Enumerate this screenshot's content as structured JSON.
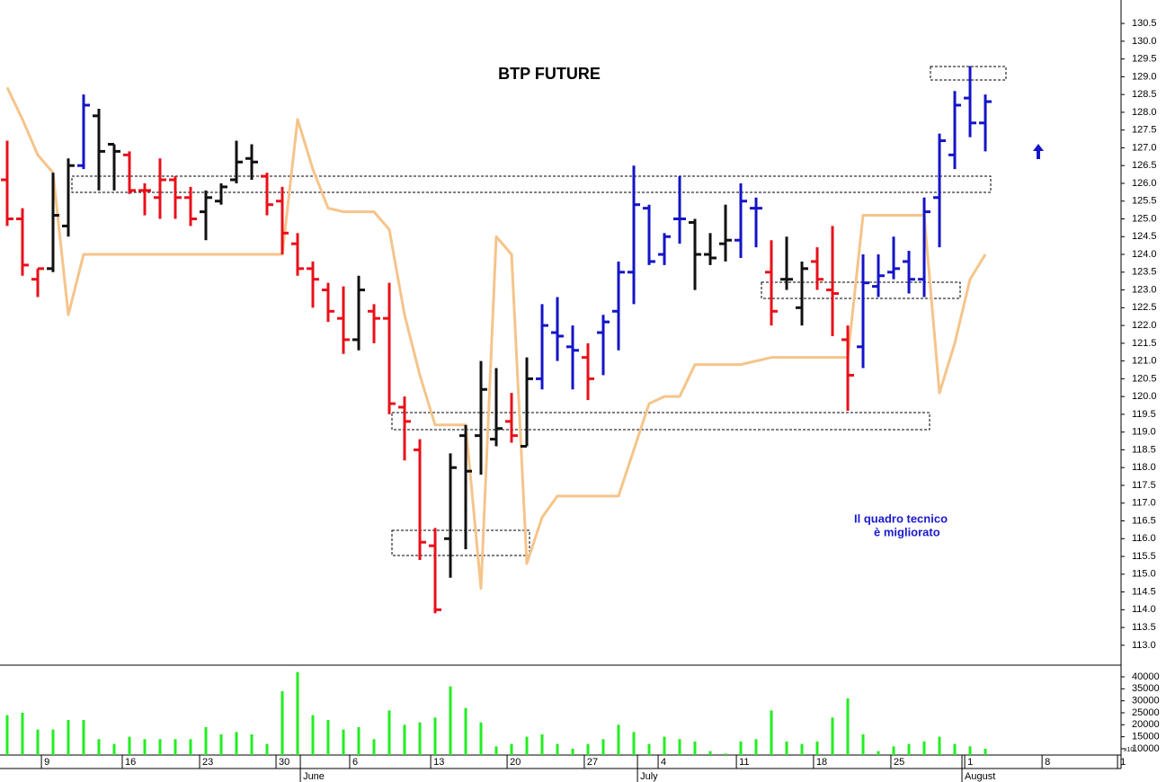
{
  "chart_data": [
    {
      "type": "ohlc",
      "title": "BTP FUTURE",
      "annotation": [
        "Il quadro tecnico",
        "è migliorato"
      ],
      "x": [
        0,
        1,
        2,
        3,
        4,
        5,
        6,
        7,
        8,
        9,
        10,
        11,
        12,
        13,
        14,
        15,
        16,
        17,
        18,
        19,
        20,
        21,
        22,
        23,
        24,
        25,
        26,
        27,
        28,
        29,
        30,
        31,
        32,
        33,
        34,
        35,
        36,
        37,
        38,
        39,
        40,
        41,
        42,
        43,
        44,
        45,
        46,
        47,
        48,
        49,
        50,
        51,
        52,
        53,
        54,
        55,
        56,
        57,
        58,
        59,
        60,
        61,
        62,
        63,
        64
      ],
      "open": [
        126.1,
        125.0,
        123.3,
        123.6,
        124.8,
        126.5,
        127.9,
        127.1,
        126.8,
        125.8,
        125.6,
        126.1,
        125.6,
        125.2,
        125.5,
        126.1,
        126.7,
        126.2,
        125.5,
        124.3,
        123.6,
        123.0,
        122.2,
        121.6,
        122.4,
        122.2,
        119.7,
        118.5,
        115.8,
        116.0,
        118.9,
        118.9,
        118.8,
        119.3,
        118.6,
        120.5,
        121.8,
        121.4,
        121.1,
        121.8,
        122.4,
        123.5,
        125.3,
        124.0,
        125.0,
        124.9,
        124.0,
        124.3,
        124.4,
        125.3,
        123.5,
        123.3,
        122.5,
        123.8,
        123.0,
        121.6,
        121.4,
        123.1,
        123.5,
        123.8,
        123.3,
        125.6,
        126.8,
        128.4,
        127.7
      ],
      "high": [
        127.2,
        125.3,
        123.6,
        126.3,
        126.7,
        128.5,
        128.1,
        127.1,
        126.9,
        126.0,
        126.7,
        126.2,
        125.9,
        125.8,
        126.0,
        127.2,
        127.1,
        126.3,
        125.9,
        124.6,
        123.8,
        123.2,
        123.1,
        123.4,
        122.6,
        123.2,
        120.0,
        118.8,
        116.3,
        118.4,
        119.2,
        121.0,
        120.8,
        120.1,
        121.1,
        122.6,
        122.8,
        122.0,
        121.5,
        122.3,
        123.8,
        126.5,
        125.4,
        124.6,
        126.2,
        125.0,
        124.6,
        125.4,
        126.0,
        125.6,
        124.4,
        124.5,
        123.8,
        124.2,
        124.8,
        122.0,
        124.0,
        124.0,
        124.5,
        124.1,
        125.6,
        127.4,
        128.6,
        129.3,
        128.5
      ],
      "low": [
        124.8,
        123.4,
        122.8,
        123.5,
        124.5,
        126.4,
        125.8,
        125.8,
        125.7,
        125.1,
        125.0,
        125.0,
        124.8,
        124.4,
        125.4,
        126.0,
        126.1,
        125.1,
        124.0,
        123.4,
        122.5,
        122.1,
        121.2,
        121.3,
        121.5,
        119.5,
        118.2,
        115.4,
        113.9,
        114.9,
        115.7,
        117.8,
        118.6,
        118.7,
        118.6,
        120.2,
        121.0,
        120.2,
        119.9,
        120.6,
        121.3,
        122.6,
        123.7,
        123.7,
        124.3,
        123.0,
        123.7,
        123.8,
        123.9,
        124.2,
        122.0,
        123.0,
        122.0,
        123.0,
        121.7,
        119.6,
        120.8,
        122.8,
        123.3,
        122.9,
        122.8,
        124.2,
        126.4,
        127.3,
        126.9
      ],
      "close": [
        125.0,
        123.7,
        123.6,
        125.1,
        126.5,
        128.2,
        126.9,
        126.9,
        125.8,
        125.8,
        126.1,
        125.6,
        125.0,
        125.6,
        125.9,
        126.6,
        126.6,
        125.4,
        124.6,
        123.6,
        123.3,
        122.4,
        121.6,
        123.0,
        122.2,
        119.8,
        119.3,
        115.9,
        114.0,
        118.0,
        117.9,
        120.2,
        119.1,
        118.9,
        120.5,
        122.0,
        121.7,
        121.3,
        120.5,
        122.1,
        123.5,
        125.4,
        123.8,
        124.5,
        125.0,
        124.0,
        123.9,
        124.4,
        125.5,
        125.3,
        122.4,
        123.3,
        123.6,
        123.3,
        122.9,
        120.6,
        123.2,
        123.4,
        123.6,
        123.3,
        125.2,
        127.2,
        128.2,
        127.7,
        128.3
      ],
      "bar_colors": [
        "#e8101a",
        "#e8101a",
        "#e8101a",
        "#111111",
        "#111111",
        "#1414c8",
        "#111111",
        "#111111",
        "#e8101a",
        "#e8101a",
        "#e8101a",
        "#e8101a",
        "#e8101a",
        "#111111",
        "#111111",
        "#111111",
        "#111111",
        "#e8101a",
        "#e8101a",
        "#e8101a",
        "#e8101a",
        "#e8101a",
        "#e8101a",
        "#111111",
        "#e8101a",
        "#e8101a",
        "#e8101a",
        "#e8101a",
        "#e8101a",
        "#111111",
        "#111111",
        "#111111",
        "#111111",
        "#e8101a",
        "#111111",
        "#1414c8",
        "#1414c8",
        "#1414c8",
        "#e8101a",
        "#1414c8",
        "#1414c8",
        "#1414c8",
        "#1414c8",
        "#1414c8",
        "#1414c8",
        "#111111",
        "#111111",
        "#111111",
        "#1414c8",
        "#1414c8",
        "#e8101a",
        "#111111",
        "#111111",
        "#e8101a",
        "#e8101a",
        "#e8101a",
        "#1414c8",
        "#1414c8",
        "#1414c8",
        "#1414c8",
        "#1414c8",
        "#1414c8",
        "#1414c8",
        "#1414c8",
        "#1414c8"
      ],
      "line": {
        "color": "#f5c48a",
        "values": [
          128.7,
          127.8,
          126.8,
          126.3,
          122.3,
          124.0,
          124.0,
          124.0,
          124.0,
          124.0,
          124.0,
          124.0,
          124.0,
          124.0,
          124.0,
          124.0,
          124.0,
          124.0,
          124.0,
          127.8,
          126.4,
          125.3,
          125.2,
          125.2,
          125.2,
          124.7,
          122.3,
          120.6,
          119.2,
          119.2,
          119.2,
          114.6,
          124.5,
          124.0,
          115.3,
          116.6,
          117.2,
          117.2,
          117.2,
          117.2,
          117.2,
          118.5,
          119.8,
          120.0,
          120.0,
          120.9,
          120.9,
          120.9,
          120.9,
          121.0,
          121.1,
          121.1,
          121.1,
          121.1,
          121.1,
          121.1,
          125.1,
          125.1,
          125.1,
          125.1,
          125.1,
          120.1,
          121.5,
          123.3,
          124.0
        ]
      },
      "xlim": [
        -0.47,
        72.88
      ],
      "ylim": [
        112.44,
        131.16
      ],
      "yticks": [
        {
          "value": 113.0,
          "label": "113.0"
        },
        {
          "value": 113.5,
          "label": "113.5"
        },
        {
          "value": 114.0,
          "label": "114.0"
        },
        {
          "value": 114.5,
          "label": "114.5"
        },
        {
          "value": 115.0,
          "label": "115.0"
        },
        {
          "value": 115.5,
          "label": "115.5"
        },
        {
          "value": 116.0,
          "label": "116.0"
        },
        {
          "value": 116.5,
          "label": "116.5"
        },
        {
          "value": 117.0,
          "label": "117.0"
        },
        {
          "value": 117.5,
          "label": "117.5"
        },
        {
          "value": 118.0,
          "label": "118.0"
        },
        {
          "value": 118.5,
          "label": "118.5"
        },
        {
          "value": 119.0,
          "label": "119.0"
        },
        {
          "value": 119.5,
          "label": "119.5"
        },
        {
          "value": 120.0,
          "label": "120.0"
        },
        {
          "value": 120.5,
          "label": "120.5"
        },
        {
          "value": 121.0,
          "label": "121.0"
        },
        {
          "value": 121.5,
          "label": "121.5"
        },
        {
          "value": 122.0,
          "label": "122.0"
        },
        {
          "value": 122.5,
          "label": "122.5"
        },
        {
          "value": 123.0,
          "label": "123.0"
        },
        {
          "value": 123.5,
          "label": "123.5"
        },
        {
          "value": 124.0,
          "label": "124.0"
        },
        {
          "value": 124.5,
          "label": "124.5"
        },
        {
          "value": 125.0,
          "label": "125.0"
        },
        {
          "value": 125.5,
          "label": "125.5"
        },
        {
          "value": 126.0,
          "label": "126.0"
        },
        {
          "value": 126.5,
          "label": "126.5"
        },
        {
          "value": 127.0,
          "label": "127.0"
        },
        {
          "value": 127.5,
          "label": "127.5"
        },
        {
          "value": 128.0,
          "label": "128.0"
        },
        {
          "value": 128.5,
          "label": "128.5"
        },
        {
          "value": 129.0,
          "label": "129.0"
        },
        {
          "value": 129.5,
          "label": "129.5"
        },
        {
          "value": 130.0,
          "label": "130.0"
        },
        {
          "value": 130.5,
          "label": "130.5"
        }
      ]
    },
    {
      "type": "bar",
      "x": [
        0,
        1,
        2,
        3,
        4,
        5,
        6,
        7,
        8,
        9,
        10,
        11,
        12,
        13,
        14,
        15,
        16,
        17,
        18,
        19,
        20,
        21,
        22,
        23,
        24,
        25,
        26,
        27,
        28,
        29,
        30,
        31,
        32,
        33,
        34,
        35,
        36,
        37,
        38,
        39,
        40,
        41,
        42,
        43,
        44,
        45,
        46,
        47,
        48,
        49,
        50,
        51,
        52,
        53,
        54,
        55,
        56,
        57,
        58,
        59,
        60,
        61,
        62,
        63,
        64
      ],
      "values": [
        24000,
        25000,
        18000,
        18000,
        22000,
        22000,
        14000,
        12000,
        15000,
        14000,
        14000,
        14000,
        14000,
        19000,
        16000,
        17000,
        16000,
        12000,
        34000,
        42000,
        24000,
        22000,
        18000,
        19000,
        14000,
        26000,
        20000,
        21000,
        23000,
        36000,
        27000,
        21000,
        11000,
        12000,
        15000,
        16000,
        12000,
        10000,
        12000,
        14000,
        20000,
        17000,
        12000,
        15000,
        14000,
        13000,
        9000,
        8000,
        13000,
        14000,
        26000,
        13000,
        12000,
        13000,
        23000,
        31000,
        16000,
        9000,
        11000,
        12000,
        13000,
        15000,
        12000,
        11000,
        10000
      ],
      "color": "#22ee22",
      "axis_note": "x10",
      "xlim": [
        -0.47,
        72.88
      ],
      "ylim": [
        7375,
        44875
      ],
      "yticks": [
        10000,
        15000,
        20000,
        25000,
        30000,
        35000,
        40000
      ],
      "xticks": [
        {
          "value": 2.24,
          "label": "9"
        },
        {
          "value": 7.53,
          "label": "16"
        },
        {
          "value": 12.59,
          "label": "23"
        },
        {
          "value": 17.59,
          "label": "30"
        },
        {
          "value": 22.41,
          "label": "6"
        },
        {
          "value": 27.71,
          "label": "13"
        },
        {
          "value": 32.71,
          "label": "20"
        },
        {
          "value": 37.76,
          "label": "27"
        },
        {
          "value": 42.59,
          "label": "4"
        },
        {
          "value": 47.71,
          "label": "11"
        },
        {
          "value": 52.76,
          "label": "18"
        },
        {
          "value": 57.82,
          "label": "25"
        },
        {
          "value": 62.65,
          "label": "1"
        },
        {
          "value": 67.71,
          "label": "8"
        },
        {
          "value": 72.65,
          "label": "1"
        }
      ],
      "month_ticks": [
        {
          "value": 19.18,
          "label": "June"
        },
        {
          "value": 41.24,
          "label": "July"
        },
        {
          "value": 62.47,
          "label": "August"
        }
      ]
    }
  ]
}
